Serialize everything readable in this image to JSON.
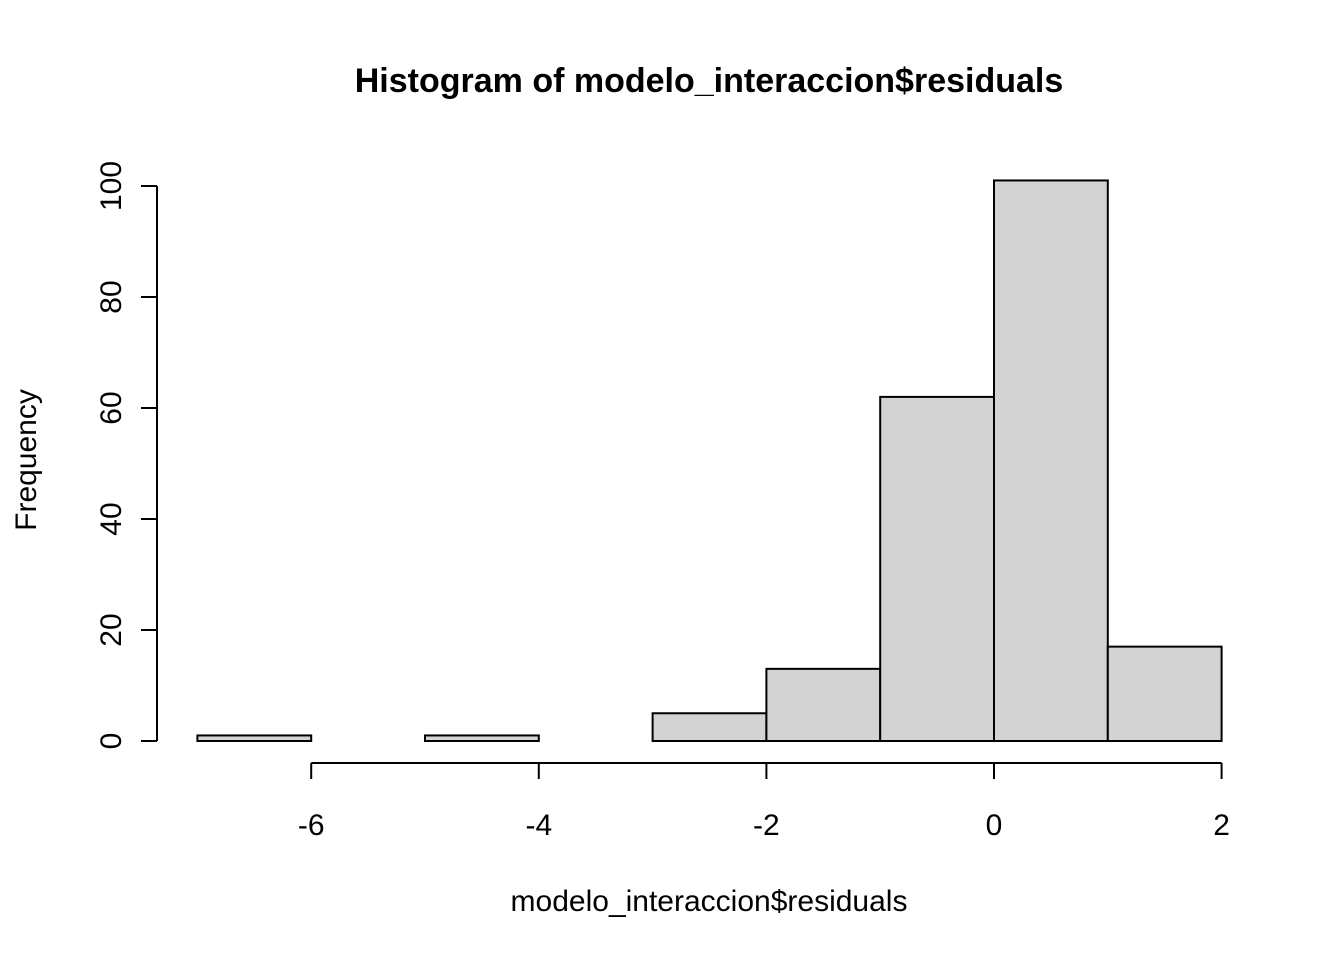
{
  "chart_data": {
    "type": "bar",
    "subtype": "histogram",
    "title": "Histogram of modelo_interaccion$residuals",
    "xlabel": "modelo_interaccion$residuals",
    "ylabel": "Frequency",
    "bins": [
      {
        "start": -7,
        "end": -6,
        "count": 1
      },
      {
        "start": -6,
        "end": -5,
        "count": 0
      },
      {
        "start": -5,
        "end": -4,
        "count": 1
      },
      {
        "start": -4,
        "end": -3,
        "count": 0
      },
      {
        "start": -3,
        "end": -2,
        "count": 5
      },
      {
        "start": -2,
        "end": -1,
        "count": 13
      },
      {
        "start": -1,
        "end": 0,
        "count": 62
      },
      {
        "start": 0,
        "end": 1,
        "count": 101
      },
      {
        "start": 1,
        "end": 2,
        "count": 17
      }
    ],
    "xlim": [
      -7,
      2
    ],
    "ylim": [
      0,
      101
    ],
    "x_ticks": [
      -6,
      -4,
      -2,
      0,
      2
    ],
    "y_ticks": [
      0,
      20,
      40,
      60,
      80,
      100
    ],
    "bar_color": "#d3d3d3",
    "grid": false
  }
}
